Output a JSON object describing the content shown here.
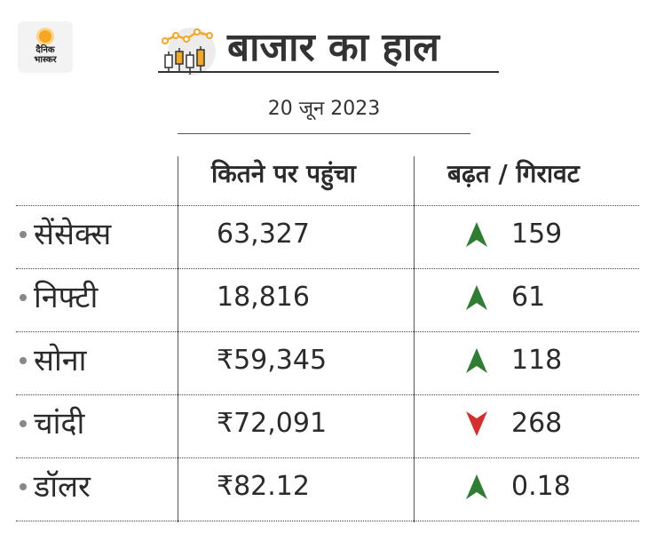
{
  "logo": {
    "text": "दैनिक\nभास्कर"
  },
  "header": {
    "title": "बाजार का हाल",
    "date": "20 जून 2023"
  },
  "columns": {
    "value": "कितने पर पहुंचा",
    "change": "बढ़त / गिरावट"
  },
  "rows": [
    {
      "name": "सेंसेक्स",
      "value": "63,327",
      "direction": "up",
      "change": "159"
    },
    {
      "name": "निफ्टी",
      "value": "18,816",
      "direction": "up",
      "change": "61"
    },
    {
      "name": "सोना",
      "value": "₹59,345",
      "direction": "up",
      "change": "118"
    },
    {
      "name": "चांदी",
      "value": "₹72,091",
      "direction": "down",
      "change": "268"
    },
    {
      "name": "डॉलर",
      "value": "₹82.12",
      "direction": "up",
      "change": "0.18"
    }
  ],
  "colors": {
    "up": "#2e7d32",
    "down": "#d32f2f",
    "accent": "#f5a623"
  }
}
